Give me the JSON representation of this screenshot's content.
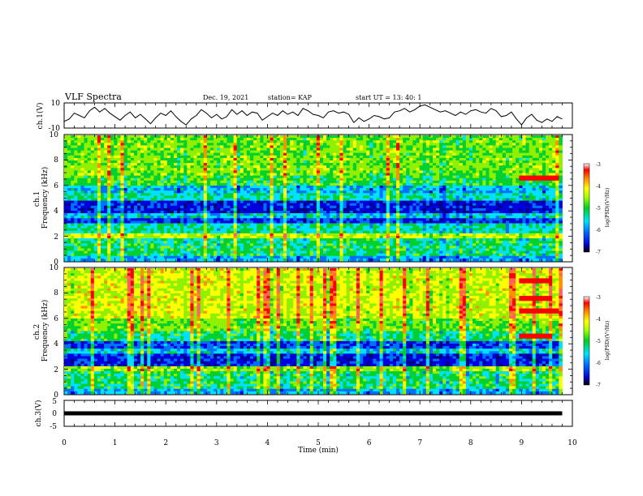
{
  "header": {
    "title": "VLF Spectra",
    "date": "Dec. 19, 2021",
    "station": "station= KAP",
    "start": "start  UT =   13: 40: 1"
  },
  "chart_data": [
    {
      "type": "line",
      "panel": "ch1-waveform",
      "ylabel": "ch.1(V)",
      "ylim": [
        -10,
        10
      ],
      "yticks": [
        "10",
        "-10"
      ],
      "xlim": [
        0,
        10
      ],
      "color": "#000000",
      "x": [
        0,
        0.1,
        0.2,
        0.3,
        0.4,
        0.5,
        0.6,
        0.7,
        0.8,
        0.9,
        1.0,
        1.1,
        1.2,
        1.3,
        1.4,
        1.5,
        1.6,
        1.7,
        1.8,
        1.9,
        2.0,
        2.1,
        2.2,
        2.3,
        2.4,
        2.5,
        2.6,
        2.7,
        2.8,
        2.9,
        3.0,
        3.1,
        3.2,
        3.3,
        3.4,
        3.5,
        3.6,
        3.7,
        3.8,
        3.9,
        4.0,
        4.1,
        4.2,
        4.3,
        4.4,
        4.5,
        4.6,
        4.7,
        4.8,
        4.9,
        5.0,
        5.1,
        5.2,
        5.3,
        5.4,
        5.5,
        5.6,
        5.7,
        5.8,
        5.9,
        6.0,
        6.1,
        6.2,
        6.3,
        6.4,
        6.5,
        6.6,
        6.7,
        6.8,
        6.9,
        7.0,
        7.1,
        7.2,
        7.3,
        7.4,
        7.5,
        7.6,
        7.7,
        7.8,
        7.9,
        8.0,
        8.1,
        8.2,
        8.3,
        8.4,
        8.5,
        8.6,
        8.7,
        8.8,
        8.9,
        9.0,
        9.1,
        9.2,
        9.3,
        9.4,
        9.5,
        9.6,
        9.7,
        9.8
      ],
      "y": [
        -5,
        -3,
        2,
        0,
        -2,
        4,
        7,
        3,
        6,
        2,
        -1,
        -4,
        0,
        3,
        -2,
        1,
        -3,
        -7,
        -2,
        2,
        0,
        4,
        -1,
        -5,
        -8,
        -3,
        0,
        5,
        2,
        -2,
        1,
        -3,
        -1,
        5,
        1,
        4,
        0,
        3,
        2,
        -4,
        -1,
        2,
        0,
        4,
        1,
        3,
        0,
        6,
        4,
        1,
        0,
        -2,
        3,
        4,
        2,
        3,
        1,
        -6,
        -2,
        -5,
        -3,
        0,
        -1,
        -3,
        -2,
        3,
        4,
        6,
        3,
        5,
        8,
        9,
        7,
        5,
        3,
        4,
        2,
        0,
        3,
        1,
        4,
        5,
        3,
        2,
        6,
        4,
        -1,
        0,
        3,
        -3,
        -8,
        -2,
        1,
        -4,
        -6,
        -3,
        -5,
        -1,
        -3
      ]
    },
    {
      "type": "heatmap",
      "panel": "ch1-spectrogram",
      "ylabel": "ch.1\nFrequency (kHz)",
      "ylim": [
        0,
        10
      ],
      "yticks": [
        "0",
        "2",
        "4",
        "6",
        "8",
        "10"
      ],
      "xlim": [
        0,
        10
      ],
      "colorbar": {
        "label": "log(PSD)(V²/Hz)",
        "range": [
          -7,
          -3
        ],
        "ticks": [
          "-3",
          "-4",
          "-5",
          "-6",
          "-7"
        ]
      }
    },
    {
      "type": "heatmap",
      "panel": "ch2-spectrogram",
      "ylabel": "ch.2\nFrequency (kHz)",
      "ylim": [
        0,
        10
      ],
      "yticks": [
        "0",
        "2",
        "4",
        "6",
        "8",
        "10"
      ],
      "xlim": [
        0,
        10
      ],
      "colorbar": {
        "label": "log(PSD)(V²/Hz)",
        "range": [
          -7,
          -3
        ],
        "ticks": [
          "-3",
          "-4",
          "-5",
          "-6",
          "-7"
        ]
      }
    },
    {
      "type": "line",
      "panel": "ch3-waveform",
      "ylabel": "ch.3(V)",
      "ylim": [
        -5,
        5
      ],
      "yticks": [
        "5",
        "0",
        "-5"
      ],
      "xlim": [
        0,
        10
      ],
      "xlabel": "Time (min)",
      "xticks": [
        "0",
        "1",
        "2",
        "3",
        "4",
        "5",
        "6",
        "7",
        "8",
        "9",
        "10"
      ],
      "x": [
        0,
        9.8
      ],
      "y": [
        0,
        0
      ]
    }
  ]
}
